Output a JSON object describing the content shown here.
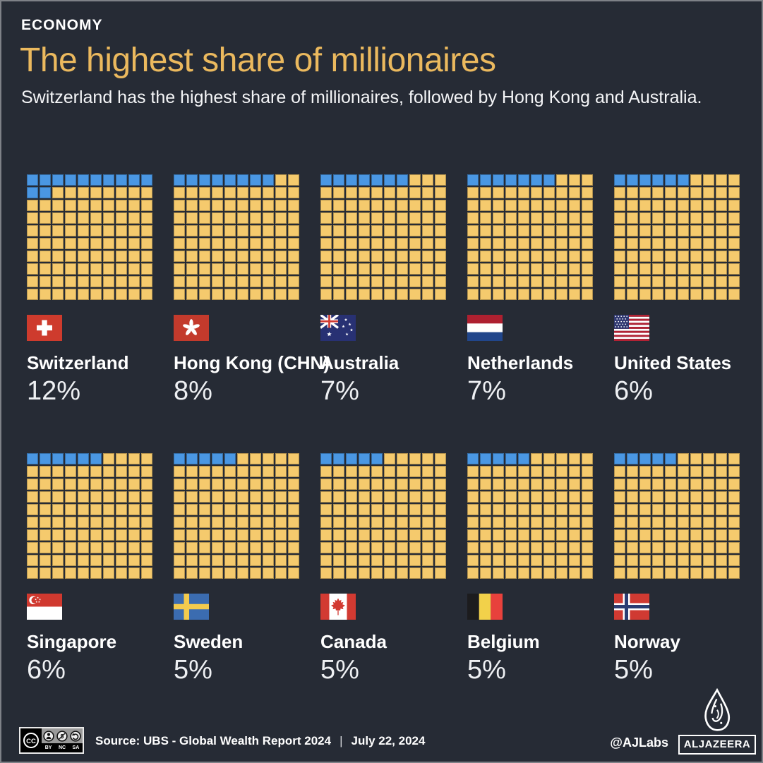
{
  "header": {
    "category": "ECONOMY",
    "title": "The highest share of millionaires",
    "subtitle": "Switzerland has the highest share of millionaires, followed by Hong Kong and Australia."
  },
  "chart_data": {
    "type": "waffle",
    "title": "The highest share of millionaires",
    "unit": "%",
    "grid": {
      "rows": 10,
      "cols": 10,
      "cell_represents": "1%",
      "layout": "2 rows x 5 charts"
    },
    "categories": [
      "Switzerland",
      "Hong Kong (CHN)",
      "Australia",
      "Netherlands",
      "United States",
      "Singapore",
      "Sweden",
      "Canada",
      "Belgium",
      "Norway"
    ],
    "values": [
      12,
      8,
      7,
      7,
      6,
      6,
      5,
      5,
      5,
      5
    ],
    "labels": [
      "12%",
      "8%",
      "7%",
      "7%",
      "6%",
      "6%",
      "5%",
      "5%",
      "5%",
      "5%"
    ],
    "fill_color": "#4a97e3",
    "empty_color": "#f5ca6d"
  },
  "countries": [
    {
      "name": "Switzerland",
      "value": 12,
      "percent_label": "12%",
      "flag": "ch"
    },
    {
      "name": "Hong Kong (CHN)",
      "value": 8,
      "percent_label": "8%",
      "flag": "hk"
    },
    {
      "name": "Australia",
      "value": 7,
      "percent_label": "7%",
      "flag": "au"
    },
    {
      "name": "Netherlands",
      "value": 7,
      "percent_label": "7%",
      "flag": "nl"
    },
    {
      "name": "United States",
      "value": 6,
      "percent_label": "6%",
      "flag": "us"
    },
    {
      "name": "Singapore",
      "value": 6,
      "percent_label": "6%",
      "flag": "sg"
    },
    {
      "name": "Sweden",
      "value": 5,
      "percent_label": "5%",
      "flag": "se"
    },
    {
      "name": "Canada",
      "value": 5,
      "percent_label": "5%",
      "flag": "ca"
    },
    {
      "name": "Belgium",
      "value": 5,
      "percent_label": "5%",
      "flag": "be"
    },
    {
      "name": "Norway",
      "value": 5,
      "percent_label": "5%",
      "flag": "no"
    }
  ],
  "footer": {
    "license": {
      "label": "CC",
      "parts": [
        "BY",
        "NC",
        "SA"
      ]
    },
    "source": "Source: UBS - Global Wealth Report 2024",
    "separator": "|",
    "date": "July 22, 2024",
    "credit": "@AJLabs",
    "brand": "ALJAZEERA"
  },
  "colors": {
    "background": "#262b35",
    "title_accent": "#ebb95e",
    "waffle_filled": "#4a97e3",
    "waffle_empty": "#f5ca6d"
  }
}
